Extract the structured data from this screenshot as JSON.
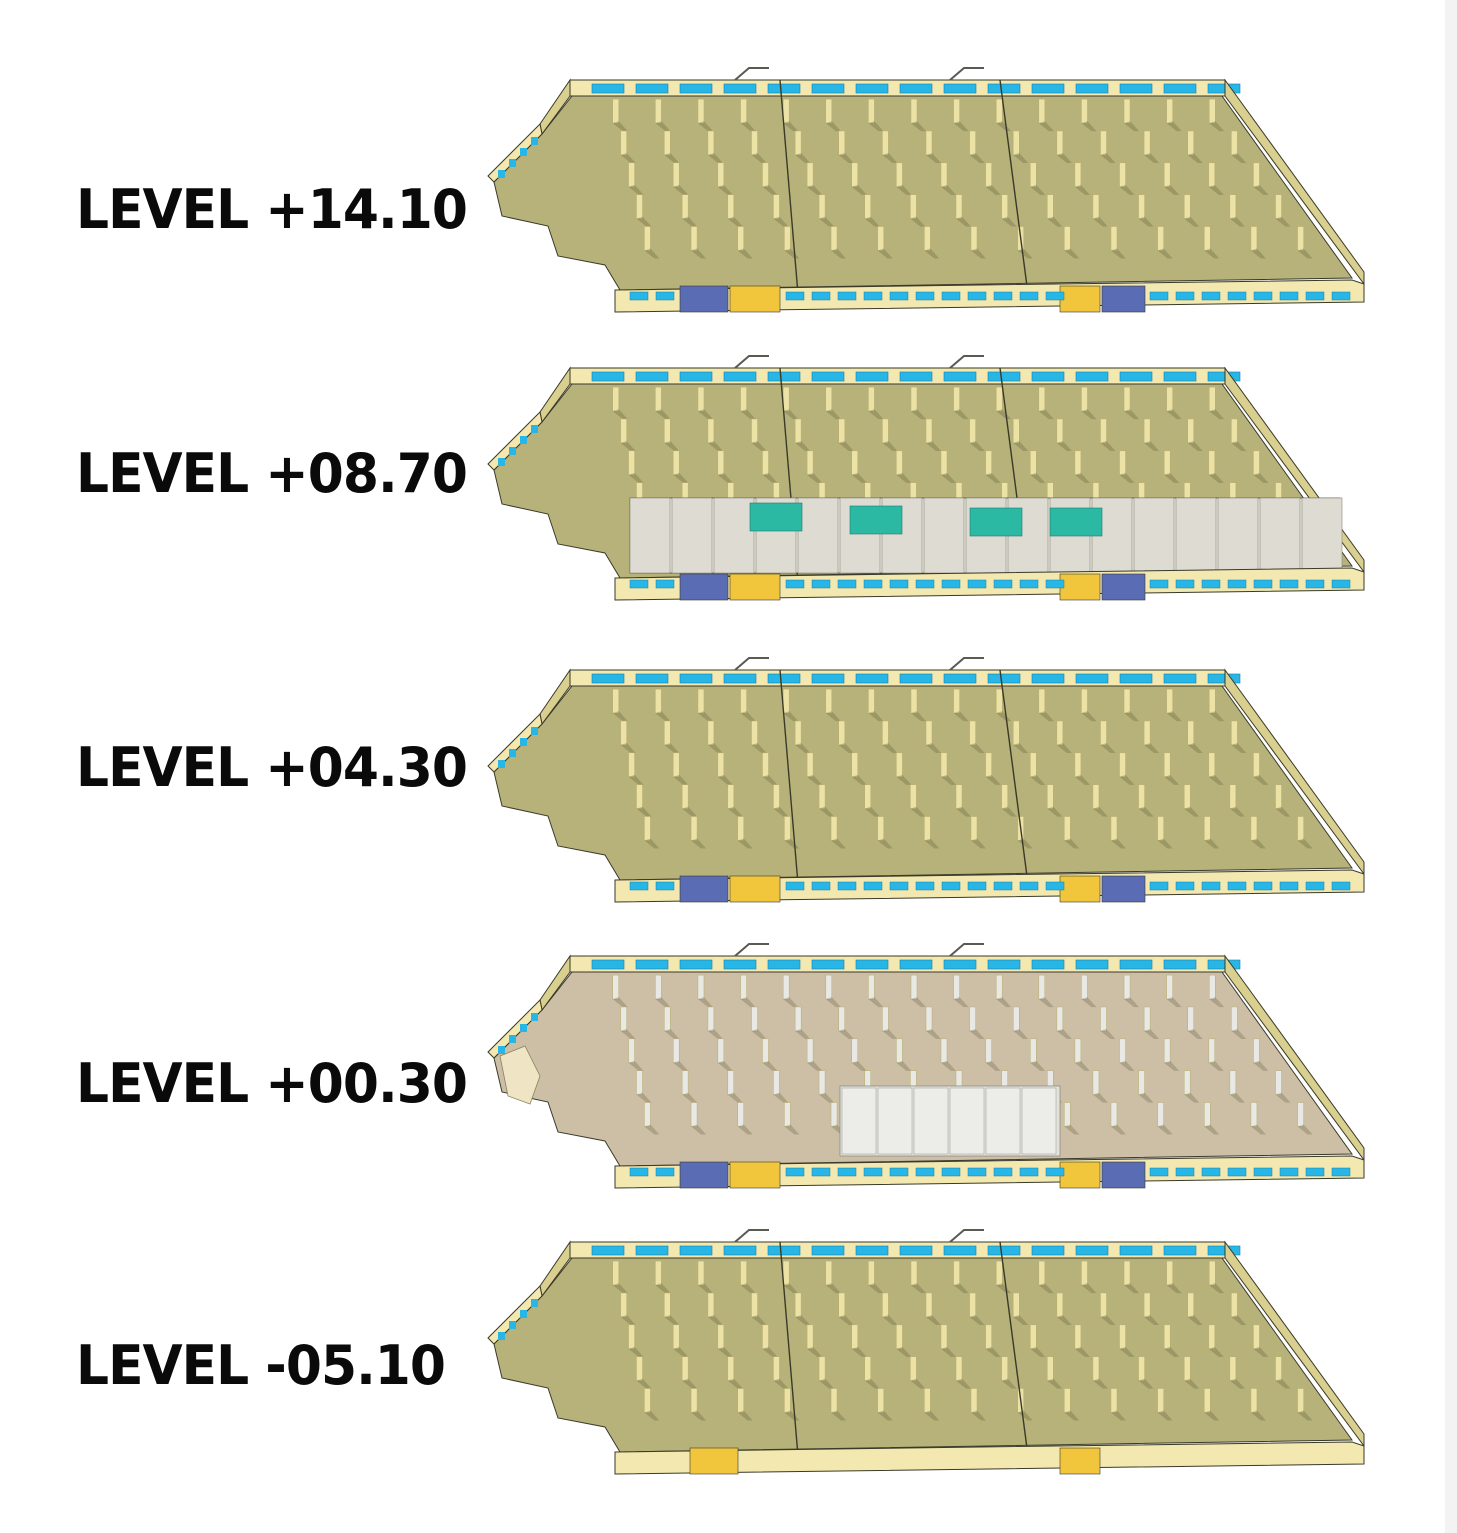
{
  "levels": [
    {
      "label": "LEVEL +14.10",
      "style": "standard"
    },
    {
      "label": "LEVEL +08.70",
      "style": "partitioned"
    },
    {
      "label": "LEVEL +04.30",
      "style": "standard"
    },
    {
      "label": "LEVEL +00.30",
      "style": "ground"
    },
    {
      "label": "LEVEL -05.10",
      "style": "basement"
    }
  ],
  "colors": {
    "floor": "#b7b27a",
    "floor_ground": "#cdbfa6",
    "wall": "#f2e8b0",
    "wall_shade": "#d9cf8e",
    "column": "#ece2a6",
    "column_ground": "#e8e8e4",
    "window": "#27b6e6",
    "glazing_blue": "#5a6db4",
    "accent_yellow": "#f2c63c",
    "teal_room": "#2cb9a4",
    "room_wall": "#dedbd2",
    "outline": "#3a3a2a"
  }
}
